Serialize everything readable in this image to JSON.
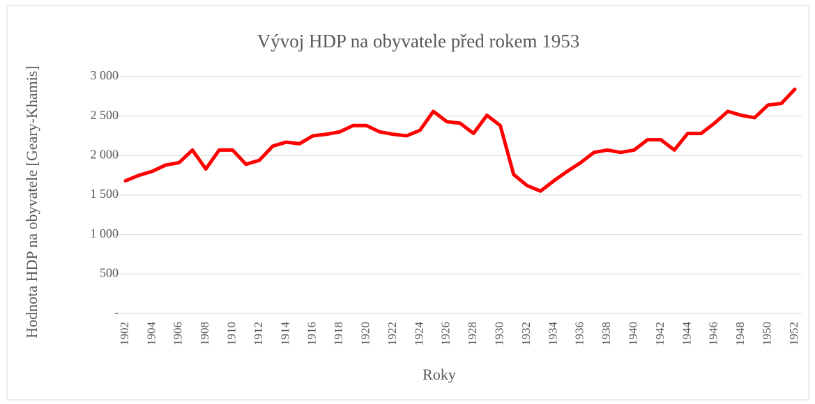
{
  "chart_data": {
    "type": "line",
    "title": "Vývoj HDP na obyvatele před rokem 1953",
    "xlabel": "Roky",
    "ylabel": "Hodnota HDP na obyvatele [Geary-Khamis]",
    "x": [
      1902,
      1903,
      1904,
      1905,
      1906,
      1907,
      1908,
      1909,
      1910,
      1911,
      1912,
      1913,
      1914,
      1915,
      1916,
      1917,
      1918,
      1919,
      1920,
      1921,
      1922,
      1923,
      1924,
      1925,
      1926,
      1927,
      1928,
      1929,
      1930,
      1931,
      1932,
      1933,
      1934,
      1935,
      1936,
      1937,
      1938,
      1939,
      1940,
      1941,
      1942,
      1943,
      1944,
      1945,
      1946,
      1947,
      1948,
      1949,
      1950,
      1951,
      1952
    ],
    "values": [
      1680,
      1750,
      1800,
      1880,
      1910,
      2070,
      1830,
      2070,
      2070,
      1890,
      1940,
      2120,
      2170,
      2150,
      2250,
      2270,
      2300,
      2380,
      2380,
      2300,
      2270,
      2250,
      2320,
      2560,
      2430,
      2410,
      2280,
      2510,
      2380,
      1760,
      1620,
      1550,
      1680,
      1800,
      1910,
      2040,
      2070,
      2040,
      2070,
      2200,
      2200,
      2070,
      2280,
      2280,
      2410,
      2560,
      2510,
      2480,
      2640,
      2660,
      2840
    ],
    "color": "#ff0000",
    "xlim": [
      1902,
      1952
    ],
    "xticks": [
      1902,
      1904,
      1906,
      1908,
      1910,
      1912,
      1914,
      1916,
      1918,
      1920,
      1922,
      1924,
      1926,
      1928,
      1930,
      1932,
      1934,
      1936,
      1938,
      1940,
      1942,
      1944,
      1946,
      1948,
      1950,
      1952
    ],
    "ylim": [
      0,
      3000
    ],
    "yticks": [
      {
        "value": 0,
        "label": "-"
      },
      500,
      {
        "value": 1000,
        "label": "1 000"
      },
      {
        "value": 1500,
        "label": "1 500"
      },
      {
        "value": 2000,
        "label": "2 000"
      },
      {
        "value": 2500,
        "label": "2 500"
      },
      {
        "value": 3000,
        "label": "3 000"
      }
    ],
    "grid": true
  }
}
